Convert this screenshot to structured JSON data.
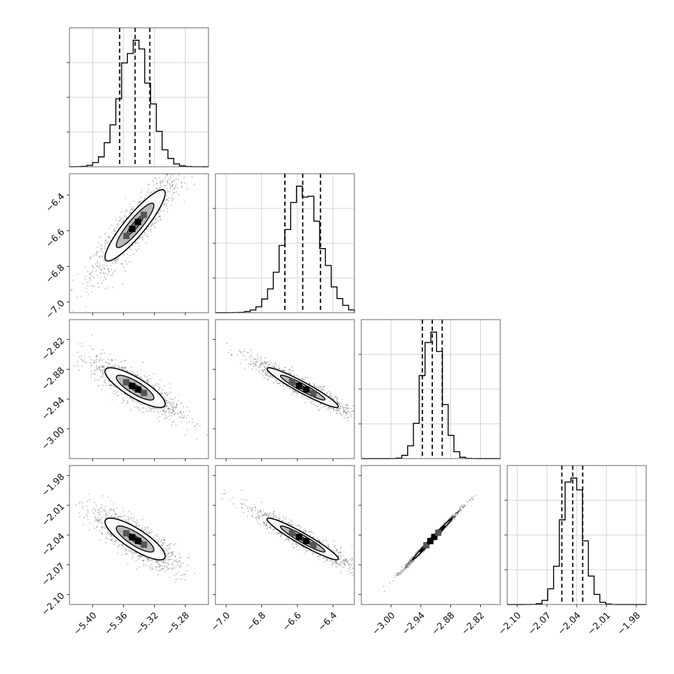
{
  "chart_data": {
    "type": "corner",
    "parameters": [
      {
        "index": 0,
        "range": [
          -5.43,
          -5.25
        ],
        "ticks": [
          -5.4,
          -5.36,
          -5.32,
          -5.28
        ],
        "tick_labels": [
          "−5.40",
          "−5.36",
          "−5.32",
          "−5.28"
        ],
        "median": -5.345,
        "q16": -5.365,
        "q84": -5.326,
        "sigma": 0.0195
      },
      {
        "index": 1,
        "range": [
          -7.06,
          -6.28
        ],
        "ticks": [
          -7.0,
          -6.8,
          -6.6,
          -6.4
        ],
        "tick_labels": [
          "−7.0",
          "−6.8",
          "−6.6",
          "−6.4"
        ],
        "median": -6.57,
        "q16": -6.67,
        "q84": -6.47,
        "sigma": 0.1
      },
      {
        "index": 2,
        "range": [
          -3.06,
          -2.78
        ],
        "ticks": [
          -3.0,
          -2.94,
          -2.88,
          -2.82
        ],
        "tick_labels": [
          "−3.00",
          "−2.94",
          "−2.88",
          "−2.82"
        ],
        "median": -2.917,
        "q16": -2.937,
        "q84": -2.897,
        "sigma": 0.02
      },
      {
        "index": 3,
        "range": [
          -2.11,
          -1.97
        ],
        "ticks": [
          -2.1,
          -2.07,
          -2.04,
          -2.01,
          -1.98
        ],
        "tick_labels": [
          "−2.10",
          "−2.07",
          "−2.04",
          "−2.01",
          "−1.98"
        ],
        "median": -2.044,
        "q16": -2.055,
        "q84": -2.034,
        "sigma": 0.0105
      }
    ],
    "correlations": [
      {
        "x": 0,
        "y": 1,
        "rho": 0.9
      },
      {
        "x": 0,
        "y": 2,
        "rho": -0.82
      },
      {
        "x": 1,
        "y": 2,
        "rho": -0.95
      },
      {
        "x": 0,
        "y": 3,
        "rho": -0.82
      },
      {
        "x": 1,
        "y": 3,
        "rho": -0.95
      },
      {
        "x": 2,
        "y": 3,
        "rho": 0.995
      }
    ],
    "histogram_bins": 24,
    "grid": true,
    "legend": "none",
    "title": "",
    "xlabel": "",
    "ylabel": ""
  }
}
